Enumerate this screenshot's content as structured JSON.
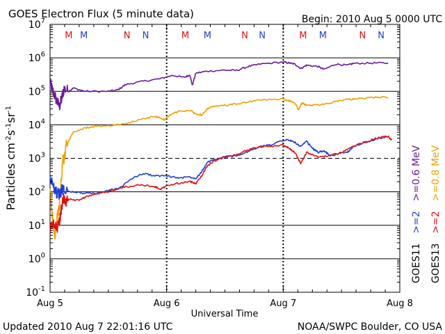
{
  "header": {
    "title": "GOES Electron Flux (5 minute data)",
    "begin": "Begin: 2010 Aug 5 0000 UTC"
  },
  "footer": {
    "updated": "Updated 2010 Aug  7 22:01:16 UTC",
    "source": "NOAA/SWPC Boulder, CO USA"
  },
  "chart_data": {
    "type": "line",
    "title": "GOES Electron Flux (5 minute data)",
    "xlabel": "Universal Time",
    "ylabel_parts": [
      "Particles cm",
      "-2",
      "s",
      "-1",
      "sr",
      "-1"
    ],
    "y_scale": "log",
    "ylim_exp": [
      -1,
      7
    ],
    "y_ticks": [
      {
        "base": "10",
        "exp": "7"
      },
      {
        "base": "10",
        "exp": "6"
      },
      {
        "base": "10",
        "exp": "5"
      },
      {
        "base": "10",
        "exp": "4"
      },
      {
        "base": "10",
        "exp": "3"
      },
      {
        "base": "10",
        "exp": "2"
      },
      {
        "base": "10",
        "exp": "1"
      },
      {
        "base": "10",
        "exp": "0"
      },
      {
        "base": "10",
        "exp": "-1"
      }
    ],
    "x_ticks": [
      "Aug 5",
      "Aug 6",
      "Aug 7",
      "Aug 8"
    ],
    "xlim_days": [
      0,
      3
    ],
    "reference_line": {
      "value": 1000,
      "style": "dashed"
    },
    "legend": {
      "placement": "right-vertical",
      "columns": [
        {
          "satellite": "GOES11",
          "items": [
            {
              "label": ">=2",
              "color": "#1f3fd6"
            },
            {
              "label": ">=0.6 MeV",
              "color": "#6a1b9a"
            }
          ]
        },
        {
          "satellite": "GOES13",
          "items": [
            {
              "label": ">=2",
              "color": "#e01010"
            },
            {
              "label": ">=0.8 MeV",
              "color": "#f0a000"
            }
          ]
        }
      ]
    },
    "markers": [
      {
        "day": 0.16,
        "label": "M",
        "color": "#e01010"
      },
      {
        "day": 0.29,
        "label": "M",
        "color": "#1f3fd6"
      },
      {
        "day": 0.66,
        "label": "N",
        "color": "#e01010"
      },
      {
        "day": 0.82,
        "label": "N",
        "color": "#1f3fd6"
      },
      {
        "day": 1.16,
        "label": "M",
        "color": "#e01010"
      },
      {
        "day": 1.35,
        "label": "M",
        "color": "#1f3fd6"
      },
      {
        "day": 1.67,
        "label": "N",
        "color": "#e01010"
      },
      {
        "day": 1.82,
        "label": "N",
        "color": "#1f3fd6"
      },
      {
        "day": 2.17,
        "label": "M",
        "color": "#e01010"
      },
      {
        "day": 2.34,
        "label": "M",
        "color": "#1f3fd6"
      },
      {
        "day": 2.68,
        "label": "N",
        "color": "#e01010"
      },
      {
        "day": 2.84,
        "label": "N",
        "color": "#1f3fd6"
      }
    ],
    "series": [
      {
        "id": "goes11-0.6",
        "color": "#6a1b9a",
        "points": [
          [
            0,
            180000.0
          ],
          [
            0.02,
            110000.0
          ],
          [
            0.05,
            60000.0
          ],
          [
            0.08,
            35000.0
          ],
          [
            0.1,
            60000.0
          ],
          [
            0.12,
            120000.0
          ],
          [
            0.16,
            100000.0
          ],
          [
            0.2,
            125000.0
          ],
          [
            0.3,
            100000.0
          ],
          [
            0.5,
            100000.0
          ],
          [
            0.58,
            110000.0
          ],
          [
            0.65,
            160000.0
          ],
          [
            0.8,
            200000.0
          ],
          [
            0.95,
            240000.0
          ],
          [
            1.05,
            300000.0
          ],
          [
            1.15,
            260000.0
          ],
          [
            1.2,
            310000.0
          ],
          [
            1.22,
            150000.0
          ],
          [
            1.25,
            350000.0
          ],
          [
            1.35,
            400000.0
          ],
          [
            1.5,
            430000.0
          ],
          [
            1.6,
            420000.0
          ],
          [
            1.7,
            550000.0
          ],
          [
            1.8,
            650000.0
          ],
          [
            2.0,
            750000.0
          ],
          [
            2.05,
            700000.0
          ],
          [
            2.1,
            650000.0
          ],
          [
            2.15,
            480000.0
          ],
          [
            2.2,
            600000.0
          ],
          [
            2.3,
            550000.0
          ],
          [
            2.35,
            450000.0
          ],
          [
            2.45,
            650000.0
          ],
          [
            2.55,
            600000.0
          ],
          [
            2.6,
            680000.0
          ],
          [
            2.75,
            700000.0
          ],
          [
            2.9,
            700000.0
          ]
        ]
      },
      {
        "id": "goes13-0.8",
        "color": "#f0a000",
        "points": [
          [
            0,
            100
          ],
          [
            0.02,
            20
          ],
          [
            0.04,
            4
          ],
          [
            0.06,
            15
          ],
          [
            0.08,
            40
          ],
          [
            0.1,
            300
          ],
          [
            0.11,
            1000
          ],
          [
            0.12,
            800
          ],
          [
            0.14,
            2500
          ],
          [
            0.2,
            6000
          ],
          [
            0.3,
            8000
          ],
          [
            0.4,
            9000
          ],
          [
            0.5,
            9500
          ],
          [
            0.6,
            10000
          ],
          [
            0.7,
            12000
          ],
          [
            0.8,
            15000
          ],
          [
            0.9,
            18000
          ],
          [
            0.98,
            14000
          ],
          [
            1.03,
            20000
          ],
          [
            1.1,
            25000
          ],
          [
            1.2,
            27000
          ],
          [
            1.25,
            21000
          ],
          [
            1.3,
            20000
          ],
          [
            1.35,
            30000
          ],
          [
            1.4,
            35000
          ],
          [
            1.5,
            38000
          ],
          [
            1.6,
            42000
          ],
          [
            1.7,
            48000
          ],
          [
            1.8,
            55000
          ],
          [
            2.0,
            58000
          ],
          [
            2.05,
            52000
          ],
          [
            2.1,
            45000
          ],
          [
            2.13,
            28000
          ],
          [
            2.16,
            45000
          ],
          [
            2.2,
            38000
          ],
          [
            2.3,
            40000
          ],
          [
            2.4,
            45000
          ],
          [
            2.5,
            55000
          ],
          [
            2.6,
            58000
          ],
          [
            2.7,
            62000
          ],
          [
            2.8,
            68000
          ],
          [
            2.9,
            65000
          ]
        ]
      },
      {
        "id": "goes11-2",
        "color": "#1f3fd6",
        "points": [
          [
            0,
            250
          ],
          [
            0.03,
            150
          ],
          [
            0.05,
            100
          ],
          [
            0.08,
            80
          ],
          [
            0.1,
            120
          ],
          [
            0.12,
            110
          ],
          [
            0.2,
            100
          ],
          [
            0.3,
            90
          ],
          [
            0.4,
            90
          ],
          [
            0.5,
            110
          ],
          [
            0.6,
            130
          ],
          [
            0.7,
            250
          ],
          [
            0.8,
            350
          ],
          [
            0.9,
            300
          ],
          [
            1.0,
            300
          ],
          [
            1.1,
            260
          ],
          [
            1.2,
            280
          ],
          [
            1.25,
            250
          ],
          [
            1.3,
            400
          ],
          [
            1.35,
            750
          ],
          [
            1.4,
            900
          ],
          [
            1.5,
            1100
          ],
          [
            1.6,
            1200
          ],
          [
            1.7,
            1600
          ],
          [
            1.8,
            2200
          ],
          [
            1.9,
            2600
          ],
          [
            2.0,
            3500
          ],
          [
            2.05,
            3500
          ],
          [
            2.1,
            3000
          ],
          [
            2.15,
            2200
          ],
          [
            2.2,
            3200
          ],
          [
            2.25,
            2000
          ],
          [
            2.3,
            1500
          ],
          [
            2.35,
            1700
          ],
          [
            2.4,
            1200
          ],
          [
            2.45,
            1300
          ],
          [
            2.55,
            1500
          ],
          [
            2.6,
            2200
          ],
          [
            2.7,
            3000
          ],
          [
            2.8,
            3800
          ],
          [
            2.9,
            4500
          ]
        ]
      },
      {
        "id": "goes13-2",
        "color": "#e01010",
        "points": [
          [
            0,
            8
          ],
          [
            0.03,
            10
          ],
          [
            0.06,
            8
          ],
          [
            0.08,
            12
          ],
          [
            0.1,
            40
          ],
          [
            0.12,
            70
          ],
          [
            0.14,
            50
          ],
          [
            0.16,
            60
          ],
          [
            0.25,
            55
          ],
          [
            0.3,
            70
          ],
          [
            0.4,
            85
          ],
          [
            0.5,
            100
          ],
          [
            0.6,
            130
          ],
          [
            0.7,
            150
          ],
          [
            0.8,
            160
          ],
          [
            0.9,
            140
          ],
          [
            0.95,
            120
          ],
          [
            1.0,
            150
          ],
          [
            1.1,
            180
          ],
          [
            1.2,
            200
          ],
          [
            1.25,
            180
          ],
          [
            1.3,
            300
          ],
          [
            1.35,
            600
          ],
          [
            1.4,
            800
          ],
          [
            1.5,
            1100
          ],
          [
            1.6,
            1300
          ],
          [
            1.7,
            1800
          ],
          [
            1.8,
            2200
          ],
          [
            1.9,
            2300
          ],
          [
            2.0,
            2500
          ],
          [
            2.05,
            2000
          ],
          [
            2.1,
            1500
          ],
          [
            2.15,
            700
          ],
          [
            2.2,
            1500
          ],
          [
            2.3,
            1100
          ],
          [
            2.4,
            1200
          ],
          [
            2.5,
            1500
          ],
          [
            2.6,
            2300
          ],
          [
            2.7,
            3000
          ],
          [
            2.8,
            4000
          ],
          [
            2.9,
            4500
          ],
          [
            2.93,
            3500
          ]
        ]
      }
    ]
  }
}
